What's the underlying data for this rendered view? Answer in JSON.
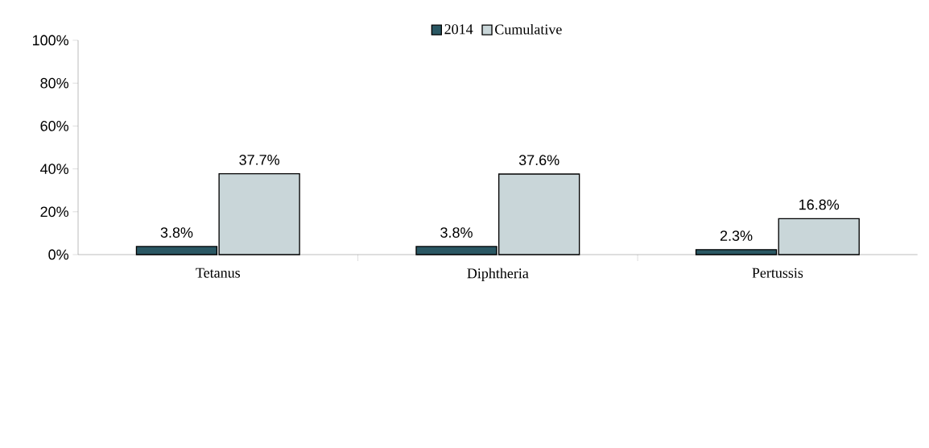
{
  "chart_data": {
    "type": "bar",
    "categories": [
      "Tetanus",
      "Diphtheria",
      "Pertussis"
    ],
    "series": [
      {
        "name": "2014",
        "color": "#2a5763",
        "values": [
          3.8,
          3.8,
          2.3
        ],
        "value_labels": [
          "3.8%",
          "3.8%",
          "2.3%"
        ]
      },
      {
        "name": "Cumulative",
        "color": "#c9d6d9",
        "values": [
          37.7,
          37.6,
          16.8
        ],
        "value_labels": [
          "37.7%",
          "37.6%",
          "16.8%"
        ]
      }
    ],
    "ylim": [
      0,
      100
    ],
    "yticks": [
      {
        "value": 0,
        "label": "0%"
      },
      {
        "value": 20,
        "label": "20%"
      },
      {
        "value": 40,
        "label": "40%"
      },
      {
        "value": 60,
        "label": "60%"
      },
      {
        "value": 80,
        "label": "80%"
      },
      {
        "value": 100,
        "label": "100%"
      }
    ],
    "grid": false,
    "legend": "top"
  }
}
